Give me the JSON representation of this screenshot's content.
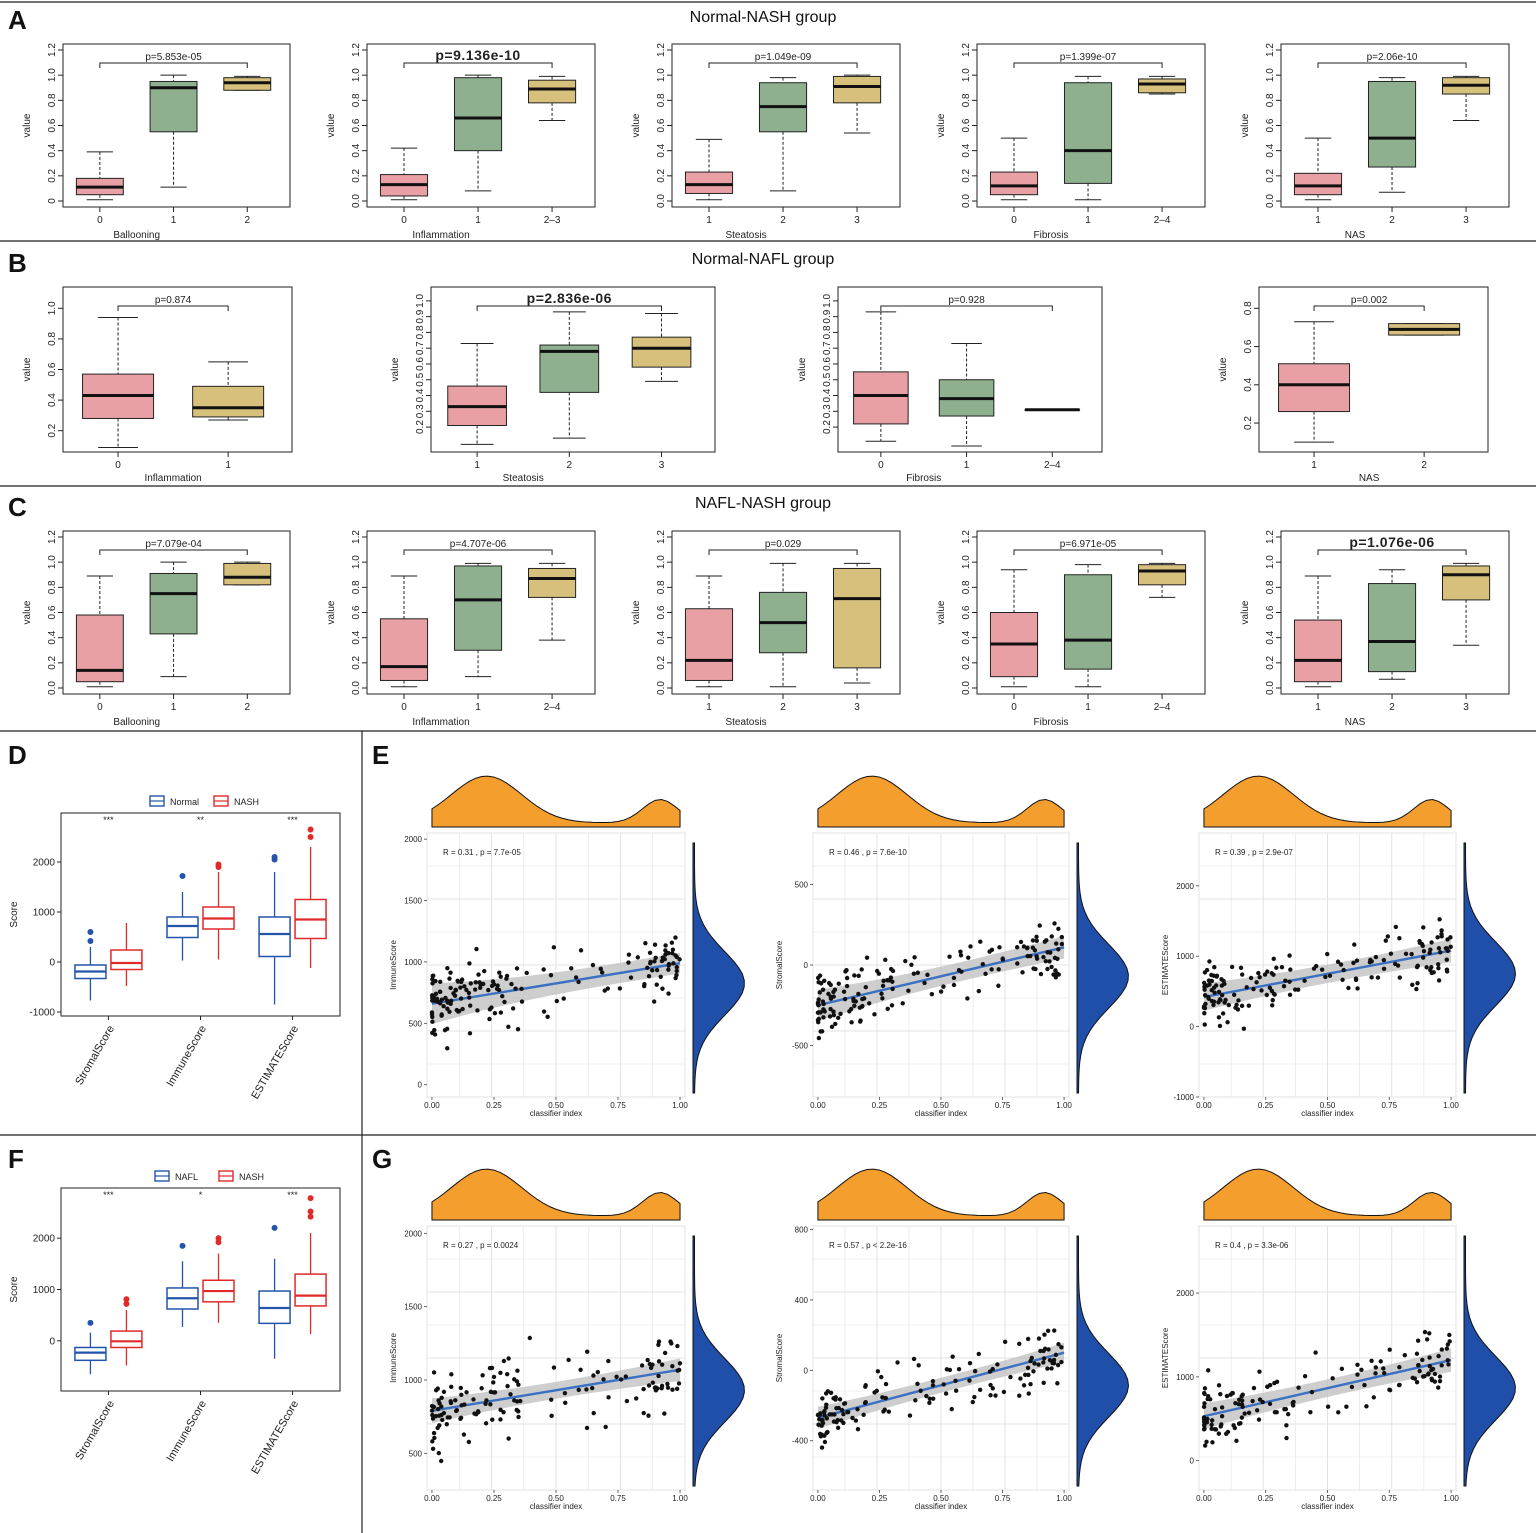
{
  "colors": {
    "pink": "#e8a0a4",
    "green": "#8fb08f",
    "tan": "#d6c07c",
    "orange": "#f49e2e",
    "blue": "#1f4fa8",
    "reg": "#3b70c2",
    "normal": "#2255aa",
    "nash": "#e02a2a"
  },
  "panel_labels": {
    "A": "A",
    "B": "B",
    "C": "C",
    "D": "D",
    "E": "E",
    "F": "F",
    "G": "G"
  },
  "row_titles": {
    "A": "Normal-NASH group",
    "B": "Normal-NAFL group",
    "C": "NAFL-NASH group"
  },
  "ylabel": "value",
  "chart_data": [
    {
      "type": "box",
      "panel": "A",
      "xlabel": "Ballooning",
      "p": "p=5.853e-05",
      "big": false,
      "ticks": [
        "0",
        "0.2",
        "0.4",
        "0.6",
        "0.8",
        "1.0",
        "1.2"
      ],
      "ylim": [
        0,
        1.2
      ],
      "categories": [
        "0",
        "1",
        "2"
      ],
      "boxes": [
        {
          "q1": 0.05,
          "med": 0.11,
          "q3": 0.18,
          "lo": 0.01,
          "hi": 0.39,
          "c": "pink"
        },
        {
          "q1": 0.55,
          "med": 0.9,
          "q3": 0.95,
          "lo": 0.11,
          "hi": 1.0,
          "c": "green"
        },
        {
          "q1": 0.88,
          "med": 0.94,
          "q3": 0.98,
          "lo": 0.88,
          "hi": 0.99,
          "c": "tan"
        }
      ]
    },
    {
      "type": "box",
      "panel": "A",
      "xlabel": "Inflammation",
      "p": "p=9.136e-10",
      "big": true,
      "ticks": [
        "0.0",
        "0.2",
        "0.4",
        "0.6",
        "0.8",
        "1.0",
        "1.2"
      ],
      "ylim": [
        0,
        1.2
      ],
      "categories": [
        "0",
        "1",
        "2–3"
      ],
      "boxes": [
        {
          "q1": 0.04,
          "med": 0.13,
          "q3": 0.21,
          "lo": 0.01,
          "hi": 0.42,
          "c": "pink"
        },
        {
          "q1": 0.4,
          "med": 0.66,
          "q3": 0.98,
          "lo": 0.08,
          "hi": 1.0,
          "c": "green"
        },
        {
          "q1": 0.78,
          "med": 0.89,
          "q3": 0.96,
          "lo": 0.64,
          "hi": 0.99,
          "c": "tan"
        }
      ]
    },
    {
      "type": "box",
      "panel": "A",
      "xlabel": "Steatosis",
      "p": "p=1.049e-09",
      "big": false,
      "ticks": [
        "0.0",
        "0.2",
        "0.4",
        "0.6",
        "0.8",
        "1.0",
        "1.2"
      ],
      "ylim": [
        0,
        1.2
      ],
      "categories": [
        "1",
        "2",
        "3"
      ],
      "boxes": [
        {
          "q1": 0.06,
          "med": 0.13,
          "q3": 0.23,
          "lo": 0.01,
          "hi": 0.49,
          "c": "pink"
        },
        {
          "q1": 0.55,
          "med": 0.75,
          "q3": 0.94,
          "lo": 0.08,
          "hi": 0.98,
          "c": "green"
        },
        {
          "q1": 0.78,
          "med": 0.91,
          "q3": 0.99,
          "lo": 0.54,
          "hi": 1.0,
          "c": "tan"
        }
      ]
    },
    {
      "type": "box",
      "panel": "A",
      "xlabel": "Fibrosis",
      "p": "p=1.399e-07",
      "big": false,
      "ticks": [
        "0.0",
        "0.2",
        "0.4",
        "0.6",
        "0.8",
        "1.0",
        "1.2"
      ],
      "ylim": [
        0,
        1.2
      ],
      "categories": [
        "0",
        "1",
        "2–4"
      ],
      "boxes": [
        {
          "q1": 0.05,
          "med": 0.12,
          "q3": 0.23,
          "lo": 0.01,
          "hi": 0.5,
          "c": "pink"
        },
        {
          "q1": 0.14,
          "med": 0.4,
          "q3": 0.94,
          "lo": 0.01,
          "hi": 0.99,
          "c": "green"
        },
        {
          "q1": 0.86,
          "med": 0.93,
          "q3": 0.97,
          "lo": 0.85,
          "hi": 0.99,
          "c": "tan"
        }
      ]
    },
    {
      "type": "box",
      "panel": "A",
      "xlabel": "NAS",
      "p": "p=2.06e-10",
      "big": false,
      "ticks": [
        "0.0",
        "0.2",
        "0.4",
        "0.6",
        "0.8",
        "1.0",
        "1.2"
      ],
      "ylim": [
        0,
        1.2
      ],
      "categories": [
        "1",
        "2",
        "3"
      ],
      "boxes": [
        {
          "q1": 0.05,
          "med": 0.12,
          "q3": 0.22,
          "lo": 0.01,
          "hi": 0.5,
          "c": "pink"
        },
        {
          "q1": 0.27,
          "med": 0.5,
          "q3": 0.95,
          "lo": 0.07,
          "hi": 0.98,
          "c": "green"
        },
        {
          "q1": 0.85,
          "med": 0.92,
          "q3": 0.98,
          "lo": 0.64,
          "hi": 0.99,
          "c": "tan"
        }
      ]
    },
    {
      "type": "box",
      "panel": "B",
      "xlabel": "Inflammation",
      "p": "p=0.874",
      "big": false,
      "ticks": [
        "0.2",
        "0.4",
        "0.6",
        "0.8",
        "1.0"
      ],
      "ylim": [
        0.1,
        1.1
      ],
      "categories": [
        "0",
        "1"
      ],
      "boxes": [
        {
          "q1": 0.28,
          "med": 0.43,
          "q3": 0.57,
          "lo": 0.09,
          "hi": 0.94,
          "c": "pink"
        },
        {
          "q1": 0.29,
          "med": 0.35,
          "q3": 0.49,
          "lo": 0.27,
          "hi": 0.65,
          "c": "tan"
        }
      ]
    },
    {
      "type": "box",
      "panel": "B",
      "xlabel": "Steatosis",
      "p": "p=2.836e-06",
      "big": true,
      "ticks": [
        "0.2",
        "0.3",
        "0.4",
        "0.5",
        "0.6",
        "0.7",
        "0.8",
        "0.9",
        "1.0"
      ],
      "ylim": [
        0.08,
        1.05
      ],
      "categories": [
        "1",
        "2",
        "3"
      ],
      "boxes": [
        {
          "q1": 0.21,
          "med": 0.33,
          "q3": 0.46,
          "lo": 0.09,
          "hi": 0.73,
          "c": "pink"
        },
        {
          "q1": 0.42,
          "med": 0.68,
          "q3": 0.72,
          "lo": 0.13,
          "hi": 0.93,
          "c": "green"
        },
        {
          "q1": 0.58,
          "med": 0.7,
          "q3": 0.77,
          "lo": 0.49,
          "hi": 0.92,
          "c": "tan"
        }
      ]
    },
    {
      "type": "box",
      "panel": "B",
      "xlabel": "Fibrosis",
      "p": "p=0.928",
      "big": false,
      "ticks": [
        "0.2",
        "0.3",
        "0.4",
        "0.5",
        "0.6",
        "0.7",
        "0.8",
        "0.9",
        "1.0"
      ],
      "ylim": [
        0.08,
        1.05
      ],
      "categories": [
        "0",
        "1",
        "2–4"
      ],
      "boxes": [
        {
          "q1": 0.22,
          "med": 0.4,
          "q3": 0.55,
          "lo": 0.11,
          "hi": 0.93,
          "c": "pink"
        },
        {
          "q1": 0.27,
          "med": 0.38,
          "q3": 0.5,
          "lo": 0.08,
          "hi": 0.73,
          "c": "green"
        },
        {
          "q1": 0.31,
          "med": 0.31,
          "q3": 0.31,
          "lo": 0.31,
          "hi": 0.31,
          "c": "tan"
        }
      ]
    },
    {
      "type": "box",
      "panel": "B",
      "xlabel": "NAS",
      "p": "p=0.002",
      "big": false,
      "ticks": [
        "0.2",
        "0.4",
        "0.6",
        "0.8"
      ],
      "ylim": [
        0.08,
        0.88
      ],
      "categories": [
        "1",
        "2"
      ],
      "boxes": [
        {
          "q1": 0.26,
          "med": 0.4,
          "q3": 0.51,
          "lo": 0.1,
          "hi": 0.73,
          "c": "pink"
        },
        {
          "q1": 0.66,
          "med": 0.69,
          "q3": 0.72,
          "lo": 0.66,
          "hi": 0.72,
          "c": "tan"
        }
      ]
    },
    {
      "type": "box",
      "panel": "C",
      "xlabel": "Ballooning",
      "p": "p=7.079e-04",
      "big": false,
      "ticks": [
        "0.0",
        "0.2",
        "0.4",
        "0.6",
        "0.8",
        "1.0",
        "1.2"
      ],
      "ylim": [
        0,
        1.2
      ],
      "categories": [
        "0",
        "1",
        "2"
      ],
      "boxes": [
        {
          "q1": 0.05,
          "med": 0.14,
          "q3": 0.58,
          "lo": 0.01,
          "hi": 0.89,
          "c": "pink"
        },
        {
          "q1": 0.43,
          "med": 0.75,
          "q3": 0.91,
          "lo": 0.09,
          "hi": 1.0,
          "c": "green"
        },
        {
          "q1": 0.82,
          "med": 0.88,
          "q3": 0.99,
          "lo": 0.82,
          "hi": 1.0,
          "c": "tan"
        }
      ]
    },
    {
      "type": "box",
      "panel": "C",
      "xlabel": "Inflammation",
      "p": "p=4.707e-06",
      "big": false,
      "ticks": [
        "0.0",
        "0.2",
        "0.4",
        "0.6",
        "0.8",
        "1.0",
        "1.2"
      ],
      "ylim": [
        0,
        1.2
      ],
      "categories": [
        "0",
        "1",
        "2–4"
      ],
      "boxes": [
        {
          "q1": 0.06,
          "med": 0.17,
          "q3": 0.55,
          "lo": 0.01,
          "hi": 0.89,
          "c": "pink"
        },
        {
          "q1": 0.3,
          "med": 0.7,
          "q3": 0.97,
          "lo": 0.09,
          "hi": 0.99,
          "c": "green"
        },
        {
          "q1": 0.72,
          "med": 0.87,
          "q3": 0.95,
          "lo": 0.38,
          "hi": 0.99,
          "c": "tan"
        }
      ]
    },
    {
      "type": "box",
      "panel": "C",
      "xlabel": "Steatosis",
      "p": "p=0.029",
      "big": false,
      "ticks": [
        "0.0",
        "0.2",
        "0.4",
        "0.6",
        "0.8",
        "1.0",
        "1.2"
      ],
      "ylim": [
        0,
        1.2
      ],
      "categories": [
        "1",
        "2",
        "3"
      ],
      "boxes": [
        {
          "q1": 0.06,
          "med": 0.22,
          "q3": 0.63,
          "lo": 0.01,
          "hi": 0.89,
          "c": "pink"
        },
        {
          "q1": 0.28,
          "med": 0.52,
          "q3": 0.76,
          "lo": 0.01,
          "hi": 0.99,
          "c": "green"
        },
        {
          "q1": 0.16,
          "med": 0.71,
          "q3": 0.95,
          "lo": 0.04,
          "hi": 0.99,
          "c": "tan"
        }
      ]
    },
    {
      "type": "box",
      "panel": "C",
      "xlabel": "Fibrosis",
      "p": "p=6.971e-05",
      "big": false,
      "ticks": [
        "0.0",
        "0.2",
        "0.4",
        "0.6",
        "0.8",
        "1.0",
        "1.2"
      ],
      "ylim": [
        0,
        1.2
      ],
      "categories": [
        "0",
        "1",
        "2–4"
      ],
      "boxes": [
        {
          "q1": 0.09,
          "med": 0.35,
          "q3": 0.6,
          "lo": 0.01,
          "hi": 0.94,
          "c": "pink"
        },
        {
          "q1": 0.15,
          "med": 0.38,
          "q3": 0.9,
          "lo": 0.01,
          "hi": 0.98,
          "c": "green"
        },
        {
          "q1": 0.82,
          "med": 0.93,
          "q3": 0.98,
          "lo": 0.72,
          "hi": 0.99,
          "c": "tan"
        }
      ]
    },
    {
      "type": "box",
      "panel": "C",
      "xlabel": "NAS",
      "p": "p=1.076e-06",
      "big": true,
      "ticks": [
        "0.0",
        "0.2",
        "0.4",
        "0.6",
        "0.8",
        "1.0",
        "1.2"
      ],
      "ylim": [
        0,
        1.2
      ],
      "categories": [
        "1",
        "2",
        "3"
      ],
      "boxes": [
        {
          "q1": 0.05,
          "med": 0.22,
          "q3": 0.54,
          "lo": 0.01,
          "hi": 0.89,
          "c": "pink"
        },
        {
          "q1": 0.13,
          "med": 0.37,
          "q3": 0.83,
          "lo": 0.07,
          "hi": 0.94,
          "c": "green"
        },
        {
          "q1": 0.7,
          "med": 0.9,
          "q3": 0.97,
          "lo": 0.34,
          "hi": 0.99,
          "c": "tan"
        }
      ]
    },
    {
      "type": "grouped-box",
      "panel": "D",
      "ylabel": "Score",
      "legend": [
        "Normal",
        "NASH"
      ],
      "legend_colors": [
        "normal",
        "nash"
      ],
      "ticks": [
        "-1000",
        "0",
        "1000",
        "2000"
      ],
      "ylim": [
        -1000,
        2900
      ],
      "categories": [
        "StromalScore",
        "ImmuneScore",
        "ESTIMATEScore"
      ],
      "sig": [
        "***",
        "**",
        "***"
      ],
      "groups": [
        [
          {
            "q1": -330,
            "med": -190,
            "q3": -60,
            "lo": -770,
            "hi": 300,
            "out": [
              420,
              600
            ]
          },
          {
            "q1": -150,
            "med": -20,
            "q3": 240,
            "lo": -480,
            "hi": 780,
            "out": []
          }
        ],
        [
          {
            "q1": 490,
            "med": 720,
            "q3": 900,
            "lo": 30,
            "hi": 1400,
            "out": [
              1720
            ]
          },
          {
            "q1": 660,
            "med": 870,
            "q3": 1100,
            "lo": 50,
            "hi": 1800,
            "out": [
              1900,
              1950
            ]
          }
        ],
        [
          {
            "q1": 110,
            "med": 560,
            "q3": 900,
            "lo": -850,
            "hi": 1800,
            "out": [
              2050,
              2100
            ]
          },
          {
            "q1": 470,
            "med": 850,
            "q3": 1250,
            "lo": -120,
            "hi": 2300,
            "out": [
              2500,
              2650
            ]
          }
        ]
      ]
    },
    {
      "type": "grouped-box",
      "panel": "F",
      "ylabel": "Score",
      "legend": [
        "NAFL",
        "NASH"
      ],
      "legend_colors": [
        "normal",
        "nash"
      ],
      "ticks": [
        "0",
        "1000",
        "2000"
      ],
      "ylim": [
        -900,
        2900
      ],
      "categories": [
        "StromalScore",
        "ImmuneScore",
        "ESTIMATEScore"
      ],
      "sig": [
        "***",
        "*",
        "***"
      ],
      "groups": [
        [
          {
            "q1": -380,
            "med": -230,
            "q3": -130,
            "lo": -650,
            "hi": 160,
            "out": [
              350
            ]
          },
          {
            "q1": -130,
            "med": -10,
            "q3": 190,
            "lo": -480,
            "hi": 600,
            "out": [
              720,
              810
            ]
          }
        ],
        [
          {
            "q1": 620,
            "med": 830,
            "q3": 1030,
            "lo": 270,
            "hi": 1550,
            "out": [
              1850
            ]
          },
          {
            "q1": 760,
            "med": 970,
            "q3": 1180,
            "lo": 350,
            "hi": 1700,
            "out": [
              1920,
              2000
            ]
          }
        ],
        [
          {
            "q1": 340,
            "med": 640,
            "q3": 970,
            "lo": -350,
            "hi": 1600,
            "out": [
              2200
            ]
          },
          {
            "q1": 680,
            "med": 880,
            "q3": 1300,
            "lo": 130,
            "hi": 2100,
            "out": [
              2420,
              2520,
              2780
            ]
          }
        ]
      ]
    },
    {
      "type": "scatter",
      "panel": "E",
      "ylabel": "ImmuneScore",
      "xlabel": "classifier index",
      "annotation": "R = 0.31 , p = 7.7e-05",
      "xticks": [
        "0.00",
        "0.25",
        "0.50",
        "0.75",
        "1.00"
      ],
      "xlim": [
        -0.02,
        1.02
      ],
      "yticks": [
        "0",
        "500",
        "1000",
        "1500",
        "2000"
      ],
      "ylim": [
        -100,
        2050
      ],
      "fit": [
        660,
        990
      ],
      "band": [
        120,
        60
      ],
      "n": 165,
      "noise": 280,
      "seed": 11
    },
    {
      "type": "scatter",
      "panel": "E",
      "ylabel": "StromalScore",
      "xlabel": "classifier index",
      "annotation": "R = 0.46 , p = 7.6e-10",
      "xticks": [
        "0.00",
        "0.25",
        "0.50",
        "0.75",
        "1.00"
      ],
      "xlim": [
        -0.02,
        1.02
      ],
      "yticks": [
        "-500",
        "0",
        "500"
      ],
      "ylim": [
        -820,
        820
      ],
      "fit": [
        -250,
        110
      ],
      "band": [
        70,
        50
      ],
      "n": 165,
      "noise": 200,
      "seed": 23
    },
    {
      "type": "scatter",
      "panel": "E",
      "ylabel": "ESTIMATEScore",
      "xlabel": "classifier index",
      "annotation": "R = 0.39 , p = 2.9e-07",
      "xticks": [
        "0.00",
        "0.25",
        "0.50",
        "0.75",
        "1.00"
      ],
      "xlim": [
        -0.02,
        1.02
      ],
      "yticks": [
        "-1000",
        "0",
        "1000",
        "2000"
      ],
      "ylim": [
        -1000,
        2750
      ],
      "fit": [
        420,
        1080
      ],
      "band": [
        140,
        120
      ],
      "n": 165,
      "noise": 440,
      "seed": 37
    },
    {
      "type": "scatter",
      "panel": "G",
      "ylabel": "ImmuneScore",
      "xlabel": "classifier index",
      "annotation": "R = 0.27 , p = 0.0024",
      "xticks": [
        "0.00",
        "0.25",
        "0.50",
        "0.75",
        "1.00"
      ],
      "xlim": [
        -0.02,
        1.02
      ],
      "yticks": [
        "500",
        "1000",
        "1500",
        "2000"
      ],
      "ylim": [
        250,
        2050
      ],
      "fit": [
        790,
        1070
      ],
      "band": [
        60,
        55
      ],
      "n": 145,
      "noise": 280,
      "seed": 41
    },
    {
      "type": "scatter",
      "panel": "G",
      "ylabel": "StromalScore",
      "xlabel": "classifier index",
      "annotation": "R = 0.57 , p < 2.2e-16",
      "xticks": [
        "0.00",
        "0.25",
        "0.50",
        "0.75",
        "1.00"
      ],
      "xlim": [
        -0.02,
        1.02
      ],
      "yticks": [
        "-400",
        "0",
        "400",
        "800"
      ],
      "ylim": [
        -680,
        820
      ],
      "fit": [
        -270,
        100
      ],
      "band": [
        45,
        40
      ],
      "n": 145,
      "noise": 180,
      "seed": 53
    },
    {
      "type": "scatter",
      "panel": "G",
      "ylabel": "ESTIMATEScore",
      "xlabel": "classifier index",
      "annotation": "R = 0.4 , p = 3.3e-06",
      "xticks": [
        "0.00",
        "0.25",
        "0.50",
        "0.75",
        "1.00"
      ],
      "xlim": [
        -0.02,
        1.02
      ],
      "yticks": [
        "0",
        "1000",
        "2000"
      ],
      "ylim": [
        -350,
        2800
      ],
      "fit": [
        530,
        1200
      ],
      "band": [
        110,
        100
      ],
      "n": 145,
      "noise": 400,
      "seed": 67
    }
  ]
}
